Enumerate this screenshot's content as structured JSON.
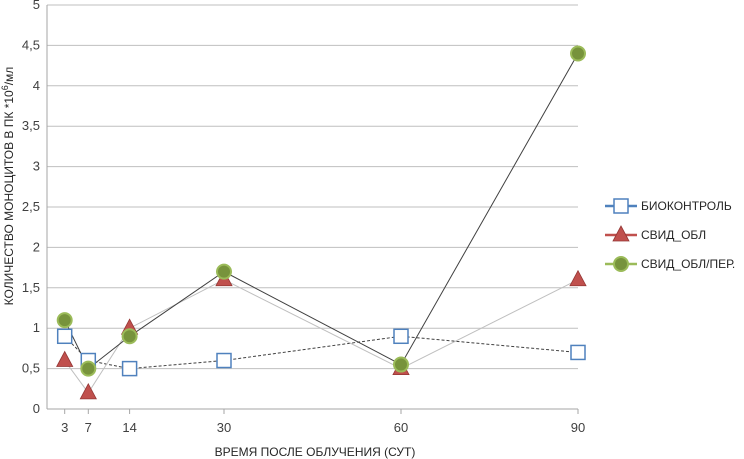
{
  "chart_data": {
    "type": "line",
    "title": "",
    "xlabel": "ВРЕМЯ ПОСЛЕ ОБЛУЧЕНИЯ (СУТ)",
    "ylabel_main": "КОЛИЧЕСТВО МОНОЦИТОВ В ПК *10",
    "ylabel_sup": "6",
    "ylabel_tail": "/мл",
    "x": [
      3,
      7,
      14,
      30,
      60,
      90
    ],
    "x_ticks": [
      "3",
      "7",
      "14",
      "30",
      "60",
      "90"
    ],
    "y_ticks": [
      "0",
      "0,5",
      "1",
      "1,5",
      "2",
      "2,5",
      "3",
      "3,5",
      "4",
      "4,5",
      "5"
    ],
    "ylim": [
      0,
      5
    ],
    "grid": true,
    "legend_position": "right",
    "series": [
      {
        "name": "БИОКОНТРОЛЬ",
        "values": [
          0.9,
          0.6,
          0.5,
          0.6,
          0.9,
          0.7
        ],
        "marker": "square",
        "marker_color": "#4f81bd",
        "legend_color": "#4f81bd",
        "line_color": "#404040",
        "line_dash": "dashed"
      },
      {
        "name": "СВИД_ОБЛ",
        "values": [
          0.6,
          0.2,
          1.0,
          1.6,
          0.5,
          1.6
        ],
        "marker": "triangle",
        "marker_color": "#c0504d",
        "legend_color": "#c0504d",
        "line_color": "#bfbfbf",
        "line_dash": "solid"
      },
      {
        "name": "СВИД_ОБЛ/ПЕР.",
        "values": [
          1.1,
          0.5,
          0.9,
          1.7,
          0.55,
          4.4
        ],
        "marker": "circle",
        "marker_color": "#77933c",
        "marker_edge": "#9bbb59",
        "legend_color": "#9bbb59",
        "line_color": "#404040",
        "line_dash": "solid"
      }
    ]
  }
}
